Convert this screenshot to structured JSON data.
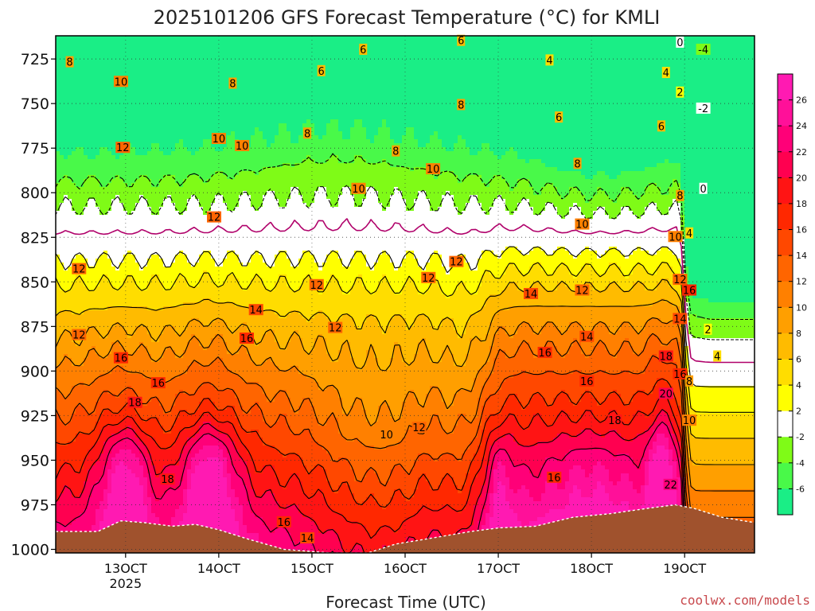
{
  "chart_data": {
    "type": "heatmap",
    "subtype": "time-height filled contour",
    "title": "2025101206 GFS Forecast Temperature (°C) for KMLI",
    "xlabel": "Forecast Time (UTC)",
    "ylabel": "",
    "credit": "coolwx.com/models",
    "x_ticks": [
      "13OCT",
      "14OCT",
      "15OCT",
      "16OCT",
      "17OCT",
      "18OCT",
      "19OCT"
    ],
    "x_tick_year": "2025",
    "x_tick_year_under": "13OCT",
    "xlim_days": [
      12.25,
      19.75
    ],
    "x_tick_days": [
      13,
      14,
      15,
      16,
      17,
      18,
      19
    ],
    "y_ticks": [
      1000,
      975,
      950,
      925,
      900,
      875,
      850,
      825,
      800,
      775,
      750,
      725
    ],
    "ylim_hpa": [
      1002,
      712
    ],
    "colorbar": {
      "levels": [
        -6,
        -4,
        -2,
        2,
        4,
        6,
        8,
        10,
        12,
        14,
        16,
        18,
        20,
        22,
        24,
        26
      ],
      "labels": [
        "-6",
        "-4",
        "-2",
        "2",
        "4",
        "6",
        "8",
        "10",
        "12",
        "14",
        "16",
        "18",
        "20",
        "22",
        "24",
        "26"
      ],
      "colors": [
        "#1aee86",
        "#49f949",
        "#7ffb17",
        "#ffffff",
        "#ffff00",
        "#ffdd00",
        "#ffbb00",
        "#ff9f00",
        "#ff8000",
        "#ff6500",
        "#ff4800",
        "#ff2800",
        "#ff1414",
        "#ff0050",
        "#ff0078",
        "#ff1099",
        "#ff1ab2"
      ]
    },
    "contour_labels": [
      {
        "text": "8",
        "day": 12.4,
        "p": 727
      },
      {
        "text": "10",
        "day": 12.95,
        "p": 738
      },
      {
        "text": "8",
        "day": 14.15,
        "p": 739
      },
      {
        "text": "6",
        "day": 15.1,
        "p": 732
      },
      {
        "text": "6",
        "day": 15.55,
        "p": 720
      },
      {
        "text": "6",
        "day": 16.6,
        "p": 715
      },
      {
        "text": "4",
        "day": 17.55,
        "p": 726
      },
      {
        "text": "0",
        "day": 18.95,
        "p": 716
      },
      {
        "text": "-4",
        "day": 19.2,
        "p": 720
      },
      {
        "text": "4",
        "day": 18.8,
        "p": 733
      },
      {
        "text": "2",
        "day": 18.95,
        "p": 744
      },
      {
        "text": "-2",
        "day": 19.2,
        "p": 753
      },
      {
        "text": "8",
        "day": 16.6,
        "p": 751
      },
      {
        "text": "6",
        "day": 17.65,
        "p": 758
      },
      {
        "text": "6",
        "day": 18.75,
        "p": 763
      },
      {
        "text": "12",
        "day": 12.97,
        "p": 775
      },
      {
        "text": "10",
        "day": 14.0,
        "p": 770
      },
      {
        "text": "10",
        "day": 14.25,
        "p": 774
      },
      {
        "text": "8",
        "day": 14.95,
        "p": 767
      },
      {
        "text": "8",
        "day": 15.9,
        "p": 777
      },
      {
        "text": "10",
        "day": 16.3,
        "p": 787
      },
      {
        "text": "8",
        "day": 17.85,
        "p": 784
      },
      {
        "text": "0",
        "day": 19.2,
        "p": 798
      },
      {
        "text": "10",
        "day": 15.5,
        "p": 798
      },
      {
        "text": "8",
        "day": 18.95,
        "p": 802
      },
      {
        "text": "12",
        "day": 13.95,
        "p": 814
      },
      {
        "text": "10",
        "day": 17.9,
        "p": 818
      },
      {
        "text": "10",
        "day": 18.9,
        "p": 825
      },
      {
        "text": "4",
        "day": 19.05,
        "p": 823
      },
      {
        "text": "12",
        "day": 12.5,
        "p": 843
      },
      {
        "text": "12",
        "day": 16.25,
        "p": 848
      },
      {
        "text": "12",
        "day": 16.55,
        "p": 839
      },
      {
        "text": "12",
        "day": 15.05,
        "p": 852
      },
      {
        "text": "14",
        "day": 17.35,
        "p": 857
      },
      {
        "text": "12",
        "day": 17.9,
        "p": 855
      },
      {
        "text": "12",
        "day": 18.95,
        "p": 849
      },
      {
        "text": "16",
        "day": 19.05,
        "p": 855
      },
      {
        "text": "14",
        "day": 14.4,
        "p": 866
      },
      {
        "text": "12",
        "day": 15.25,
        "p": 876
      },
      {
        "text": "14",
        "day": 18.95,
        "p": 871
      },
      {
        "text": "2",
        "day": 19.25,
        "p": 877
      },
      {
        "text": "12",
        "day": 12.5,
        "p": 880
      },
      {
        "text": "16",
        "day": 14.3,
        "p": 882
      },
      {
        "text": "14",
        "day": 17.95,
        "p": 881
      },
      {
        "text": "16",
        "day": 12.95,
        "p": 893
      },
      {
        "text": "16",
        "day": 17.5,
        "p": 890
      },
      {
        "text": "18",
        "day": 18.8,
        "p": 892
      },
      {
        "text": "4",
        "day": 19.35,
        "p": 892
      },
      {
        "text": "16",
        "day": 13.35,
        "p": 907
      },
      {
        "text": "16",
        "day": 17.95,
        "p": 906
      },
      {
        "text": "16",
        "day": 18.95,
        "p": 902
      },
      {
        "text": "8",
        "day": 19.05,
        "p": 906
      },
      {
        "text": "18",
        "day": 13.1,
        "p": 918
      },
      {
        "text": "20",
        "day": 18.8,
        "p": 913
      },
      {
        "text": "10",
        "day": 19.05,
        "p": 928
      },
      {
        "text": "18",
        "day": 18.25,
        "p": 928
      },
      {
        "text": "12",
        "day": 16.15,
        "p": 932
      },
      {
        "text": "10",
        "day": 15.8,
        "p": 936
      },
      {
        "text": "18",
        "day": 13.45,
        "p": 961
      },
      {
        "text": "16",
        "day": 17.6,
        "p": 960
      },
      {
        "text": "22",
        "day": 18.85,
        "p": 964
      },
      {
        "text": "16",
        "day": 14.7,
        "p": 985
      },
      {
        "text": "14",
        "day": 14.95,
        "p": 994
      }
    ]
  }
}
